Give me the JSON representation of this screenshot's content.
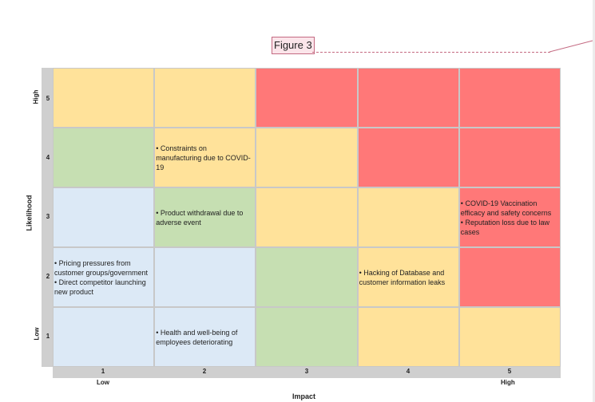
{
  "caption": "Figure 3",
  "axes": {
    "x_title": "Impact",
    "y_title": "Likelihood",
    "x_low": "Low",
    "x_high": "High",
    "y_low": "Low",
    "y_high": "High",
    "x_ticks": [
      "1",
      "2",
      "3",
      "4",
      "5"
    ],
    "y_ticks": [
      "5",
      "4",
      "3",
      "2",
      "1"
    ]
  },
  "colors": {
    "red": "#ff7878",
    "yellow": "#ffe29a",
    "green": "#c6dfb2",
    "blue": "#dce9f6"
  },
  "matrix": {
    "rows": [
      {
        "likelihood": "5",
        "cells": [
          {
            "impact": "1",
            "level": "yellow",
            "risks": []
          },
          {
            "impact": "2",
            "level": "yellow",
            "risks": []
          },
          {
            "impact": "3",
            "level": "red",
            "risks": []
          },
          {
            "impact": "4",
            "level": "red",
            "risks": []
          },
          {
            "impact": "5",
            "level": "red",
            "risks": []
          }
        ]
      },
      {
        "likelihood": "4",
        "cells": [
          {
            "impact": "1",
            "level": "green",
            "risks": []
          },
          {
            "impact": "2",
            "level": "yellow",
            "risks": [
              "• Constraints on manufacturing due to COVID-19"
            ]
          },
          {
            "impact": "3",
            "level": "yellow",
            "risks": []
          },
          {
            "impact": "4",
            "level": "red",
            "risks": []
          },
          {
            "impact": "5",
            "level": "red",
            "risks": []
          }
        ]
      },
      {
        "likelihood": "3",
        "cells": [
          {
            "impact": "1",
            "level": "blue",
            "risks": []
          },
          {
            "impact": "2",
            "level": "green",
            "risks": [
              "• Product withdrawal due to adverse event"
            ]
          },
          {
            "impact": "3",
            "level": "yellow",
            "risks": []
          },
          {
            "impact": "4",
            "level": "yellow",
            "risks": []
          },
          {
            "impact": "5",
            "level": "red",
            "risks": [
              "• COVID-19 Vaccination efficacy and safety concerns",
              "• Reputation loss due to law cases"
            ]
          }
        ]
      },
      {
        "likelihood": "2",
        "cells": [
          {
            "impact": "1",
            "level": "blue",
            "risks": [
              "• Pricing pressures from customer groups/government",
              "• Direct competitor launching new product"
            ]
          },
          {
            "impact": "2",
            "level": "blue",
            "risks": []
          },
          {
            "impact": "3",
            "level": "green",
            "risks": []
          },
          {
            "impact": "4",
            "level": "yellow",
            "risks": [
              "• Hacking of Database and customer information leaks"
            ]
          },
          {
            "impact": "5",
            "level": "red",
            "risks": []
          }
        ]
      },
      {
        "likelihood": "1",
        "cells": [
          {
            "impact": "1",
            "level": "blue",
            "risks": []
          },
          {
            "impact": "2",
            "level": "blue",
            "risks": [
              "• Health and well-being of employees deteriorating"
            ]
          },
          {
            "impact": "3",
            "level": "green",
            "risks": []
          },
          {
            "impact": "4",
            "level": "yellow",
            "risks": []
          },
          {
            "impact": "5",
            "level": "yellow",
            "risks": []
          }
        ]
      }
    ]
  }
}
